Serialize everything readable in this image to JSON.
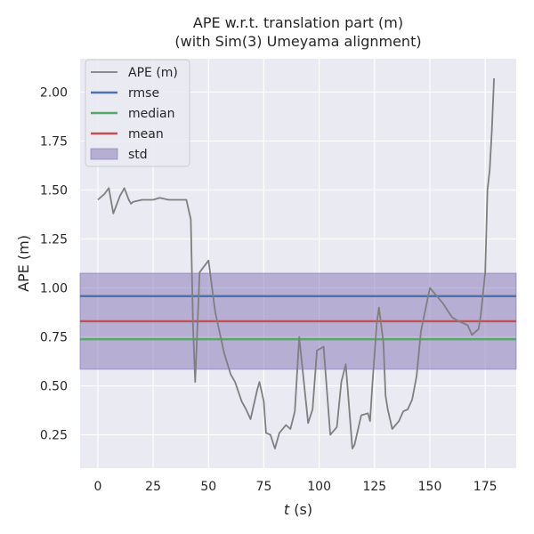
{
  "chart_data": {
    "type": "line",
    "title": "APE w.r.t. translation part (m)",
    "subtitle": "(with Sim(3) Umeyama alignment)",
    "xlabel_var": "t",
    "xlabel_unit": " (s)",
    "ylabel": "APE (m)",
    "xlim": [
      -8,
      189
    ],
    "ylim": [
      0.08,
      2.17
    ],
    "x_ticks": [
      0,
      25,
      50,
      75,
      100,
      125,
      150,
      175
    ],
    "y_ticks": [
      0.25,
      0.5,
      0.75,
      1.0,
      1.25,
      1.5,
      1.75,
      2.0
    ],
    "grid": true,
    "legend_position": "top-left",
    "series": [
      {
        "name": "APE (m)",
        "color": "#7f7f7f",
        "x": [
          0,
          3,
          5,
          7,
          10,
          12,
          14,
          15,
          16,
          20,
          25,
          28,
          32,
          36,
          40,
          42,
          43,
          44,
          46,
          50,
          53,
          57,
          60,
          62,
          65,
          67,
          69,
          72,
          73,
          74,
          75,
          76,
          78,
          80,
          82,
          85,
          87,
          89,
          91,
          95,
          97,
          99,
          102,
          105,
          108,
          110,
          112,
          115,
          116,
          119,
          122,
          123,
          124,
          126,
          127,
          129,
          130,
          131,
          133,
          136,
          138,
          140,
          142,
          144,
          146,
          150,
          156,
          160,
          163,
          167,
          169,
          172,
          173,
          175,
          176,
          177,
          178,
          179
        ],
        "y": [
          1.45,
          1.48,
          1.51,
          1.38,
          1.47,
          1.51,
          1.45,
          1.43,
          1.44,
          1.45,
          1.45,
          1.46,
          1.45,
          1.45,
          1.45,
          1.35,
          0.8,
          0.52,
          1.08,
          1.14,
          0.88,
          0.67,
          0.56,
          0.52,
          0.42,
          0.38,
          0.33,
          0.48,
          0.52,
          0.47,
          0.42,
          0.26,
          0.25,
          0.18,
          0.26,
          0.3,
          0.28,
          0.37,
          0.75,
          0.31,
          0.38,
          0.68,
          0.7,
          0.25,
          0.29,
          0.52,
          0.61,
          0.18,
          0.2,
          0.35,
          0.36,
          0.32,
          0.5,
          0.82,
          0.9,
          0.72,
          0.45,
          0.38,
          0.28,
          0.32,
          0.37,
          0.38,
          0.43,
          0.55,
          0.78,
          1.0,
          0.92,
          0.85,
          0.83,
          0.81,
          0.76,
          0.79,
          0.86,
          1.08,
          1.5,
          1.6,
          1.8,
          2.07
        ]
      },
      {
        "name": "rmse",
        "color": "#4c72b0",
        "value": 0.958
      },
      {
        "name": "median",
        "color": "#55a868",
        "value": 0.738
      },
      {
        "name": "mean",
        "color": "#c44e52",
        "value": 0.83
      },
      {
        "name": "std",
        "color": "#8172b3",
        "range": [
          0.585,
          1.075
        ]
      }
    ]
  }
}
